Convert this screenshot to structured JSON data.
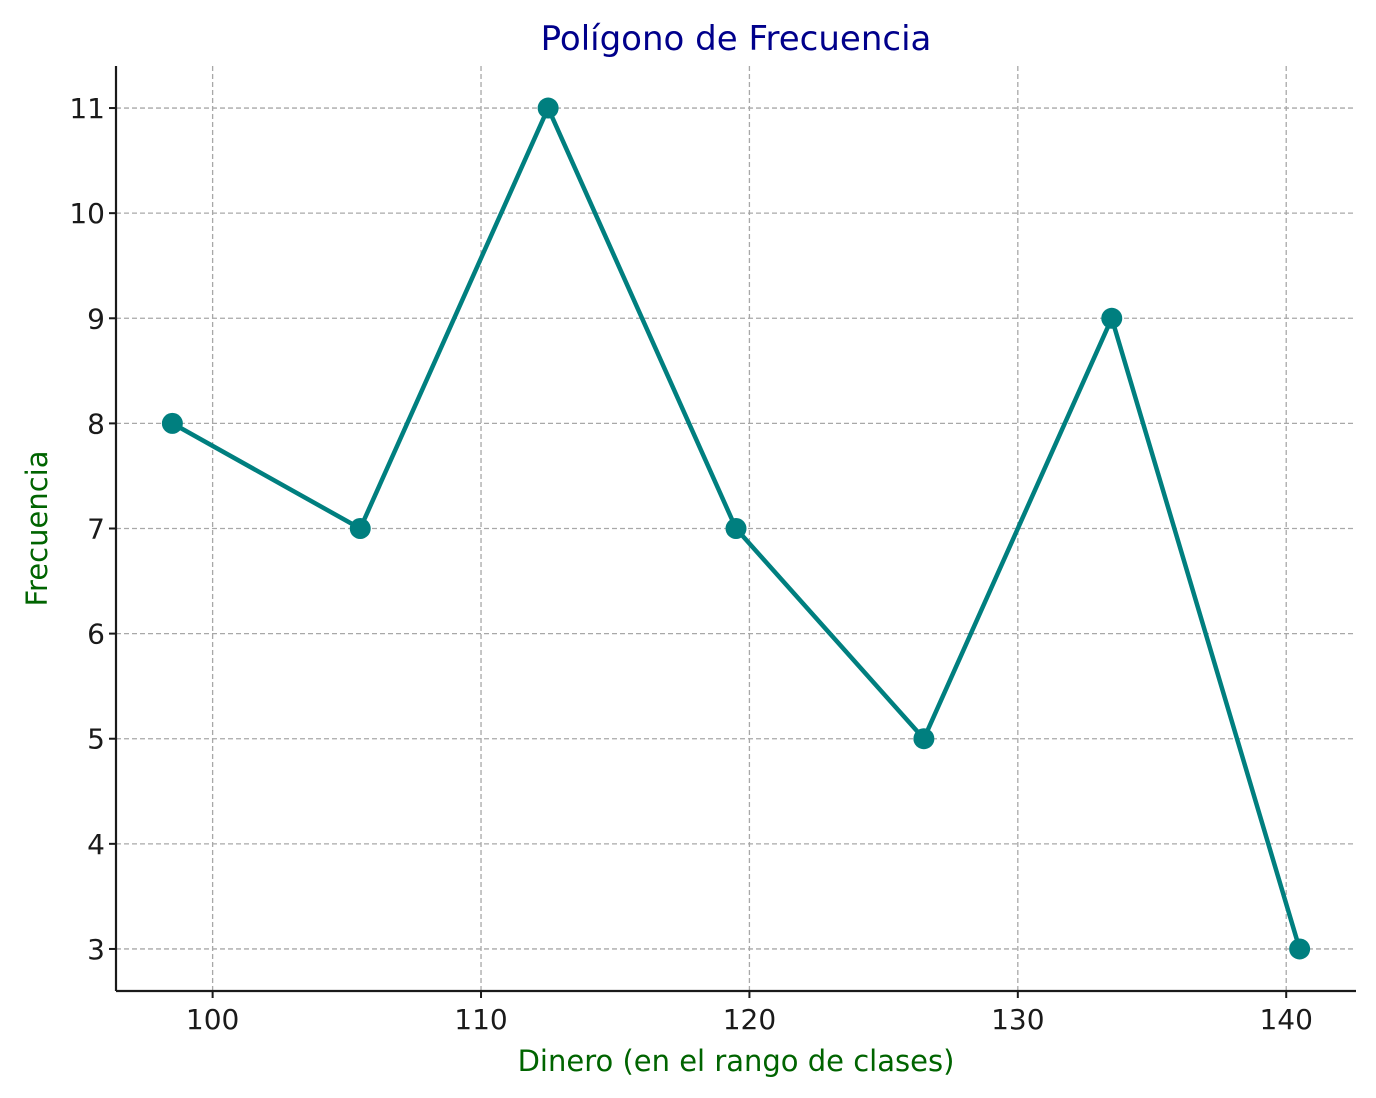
{
  "chart_data": {
    "type": "line",
    "title": "Polígono de Frecuencia",
    "xlabel": "Dinero (en el rango de clases)",
    "ylabel": "Frecuencia",
    "xlim": [
      96.4,
      142.6
    ],
    "ylim": [
      2.6,
      11.4
    ],
    "xticks": [
      100,
      110,
      120,
      130,
      140
    ],
    "yticks": [
      3,
      4,
      5,
      6,
      7,
      8,
      9,
      10,
      11
    ],
    "grid": true,
    "series": [
      {
        "x": [
          98.5,
          105.5,
          112.5,
          119.5,
          126.5,
          133.5,
          140.5
        ],
        "y": [
          8,
          7,
          11,
          7,
          5,
          9,
          3
        ],
        "color": "#007f7f",
        "marker": "circle"
      }
    ],
    "title_color": "#00008b",
    "label_color": "#006400"
  }
}
